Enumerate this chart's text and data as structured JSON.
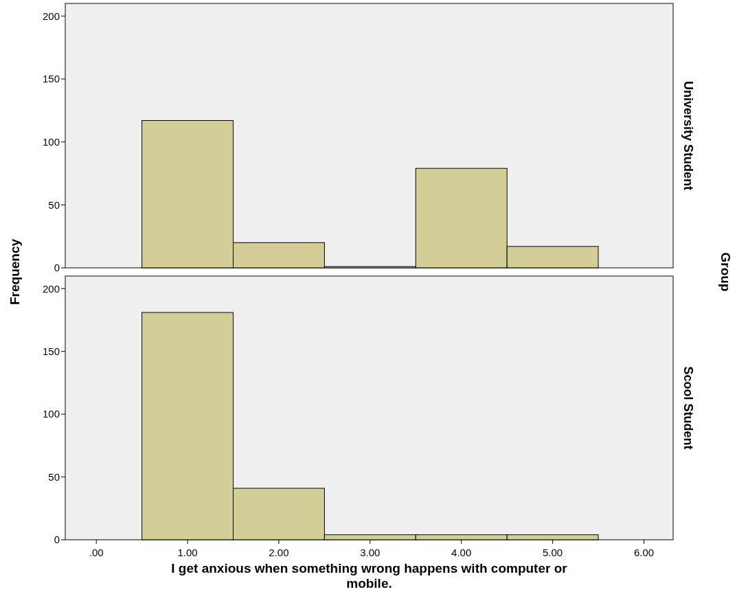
{
  "chart_data": [
    {
      "type": "histogram",
      "ylabel": "Frequency",
      "annotations": [
        "University Student",
        "Group"
      ],
      "bins": [
        0.5,
        1.5,
        2.5,
        3.5,
        4.5,
        5.5
      ],
      "values": [
        117,
        20,
        1,
        79,
        17
      ],
      "color": "#d3ce97",
      "xlim": [
        -0.34,
        6.32
      ],
      "ylim": [
        0,
        210
      ],
      "yticks": [
        0,
        50,
        100,
        150,
        200
      ],
      "tick_labels": "y"
    },
    {
      "type": "histogram",
      "annotations": [
        "Scool Student"
      ],
      "xlabel": "I get anxious when something wrong happens with computer or mobile.",
      "bins": [
        0.5,
        1.5,
        2.5,
        3.5,
        4.5,
        5.5
      ],
      "values": [
        181,
        41,
        4,
        4,
        4
      ],
      "color": "#d3ce97",
      "xlim": [
        -0.34,
        6.32
      ],
      "ylim": [
        0,
        210
      ],
      "yticks": [
        0,
        50,
        100,
        150,
        200
      ],
      "xticks": [
        {
          "value": 0,
          "label": ".00"
        },
        {
          "value": 1,
          "label": "1.00"
        },
        {
          "value": 2,
          "label": "2.00"
        },
        {
          "value": 3,
          "label": "3.00"
        },
        {
          "value": 4,
          "label": "4.00"
        },
        {
          "value": 5,
          "label": "5.00"
        },
        {
          "value": 6,
          "label": "6.00"
        }
      ]
    }
  ]
}
